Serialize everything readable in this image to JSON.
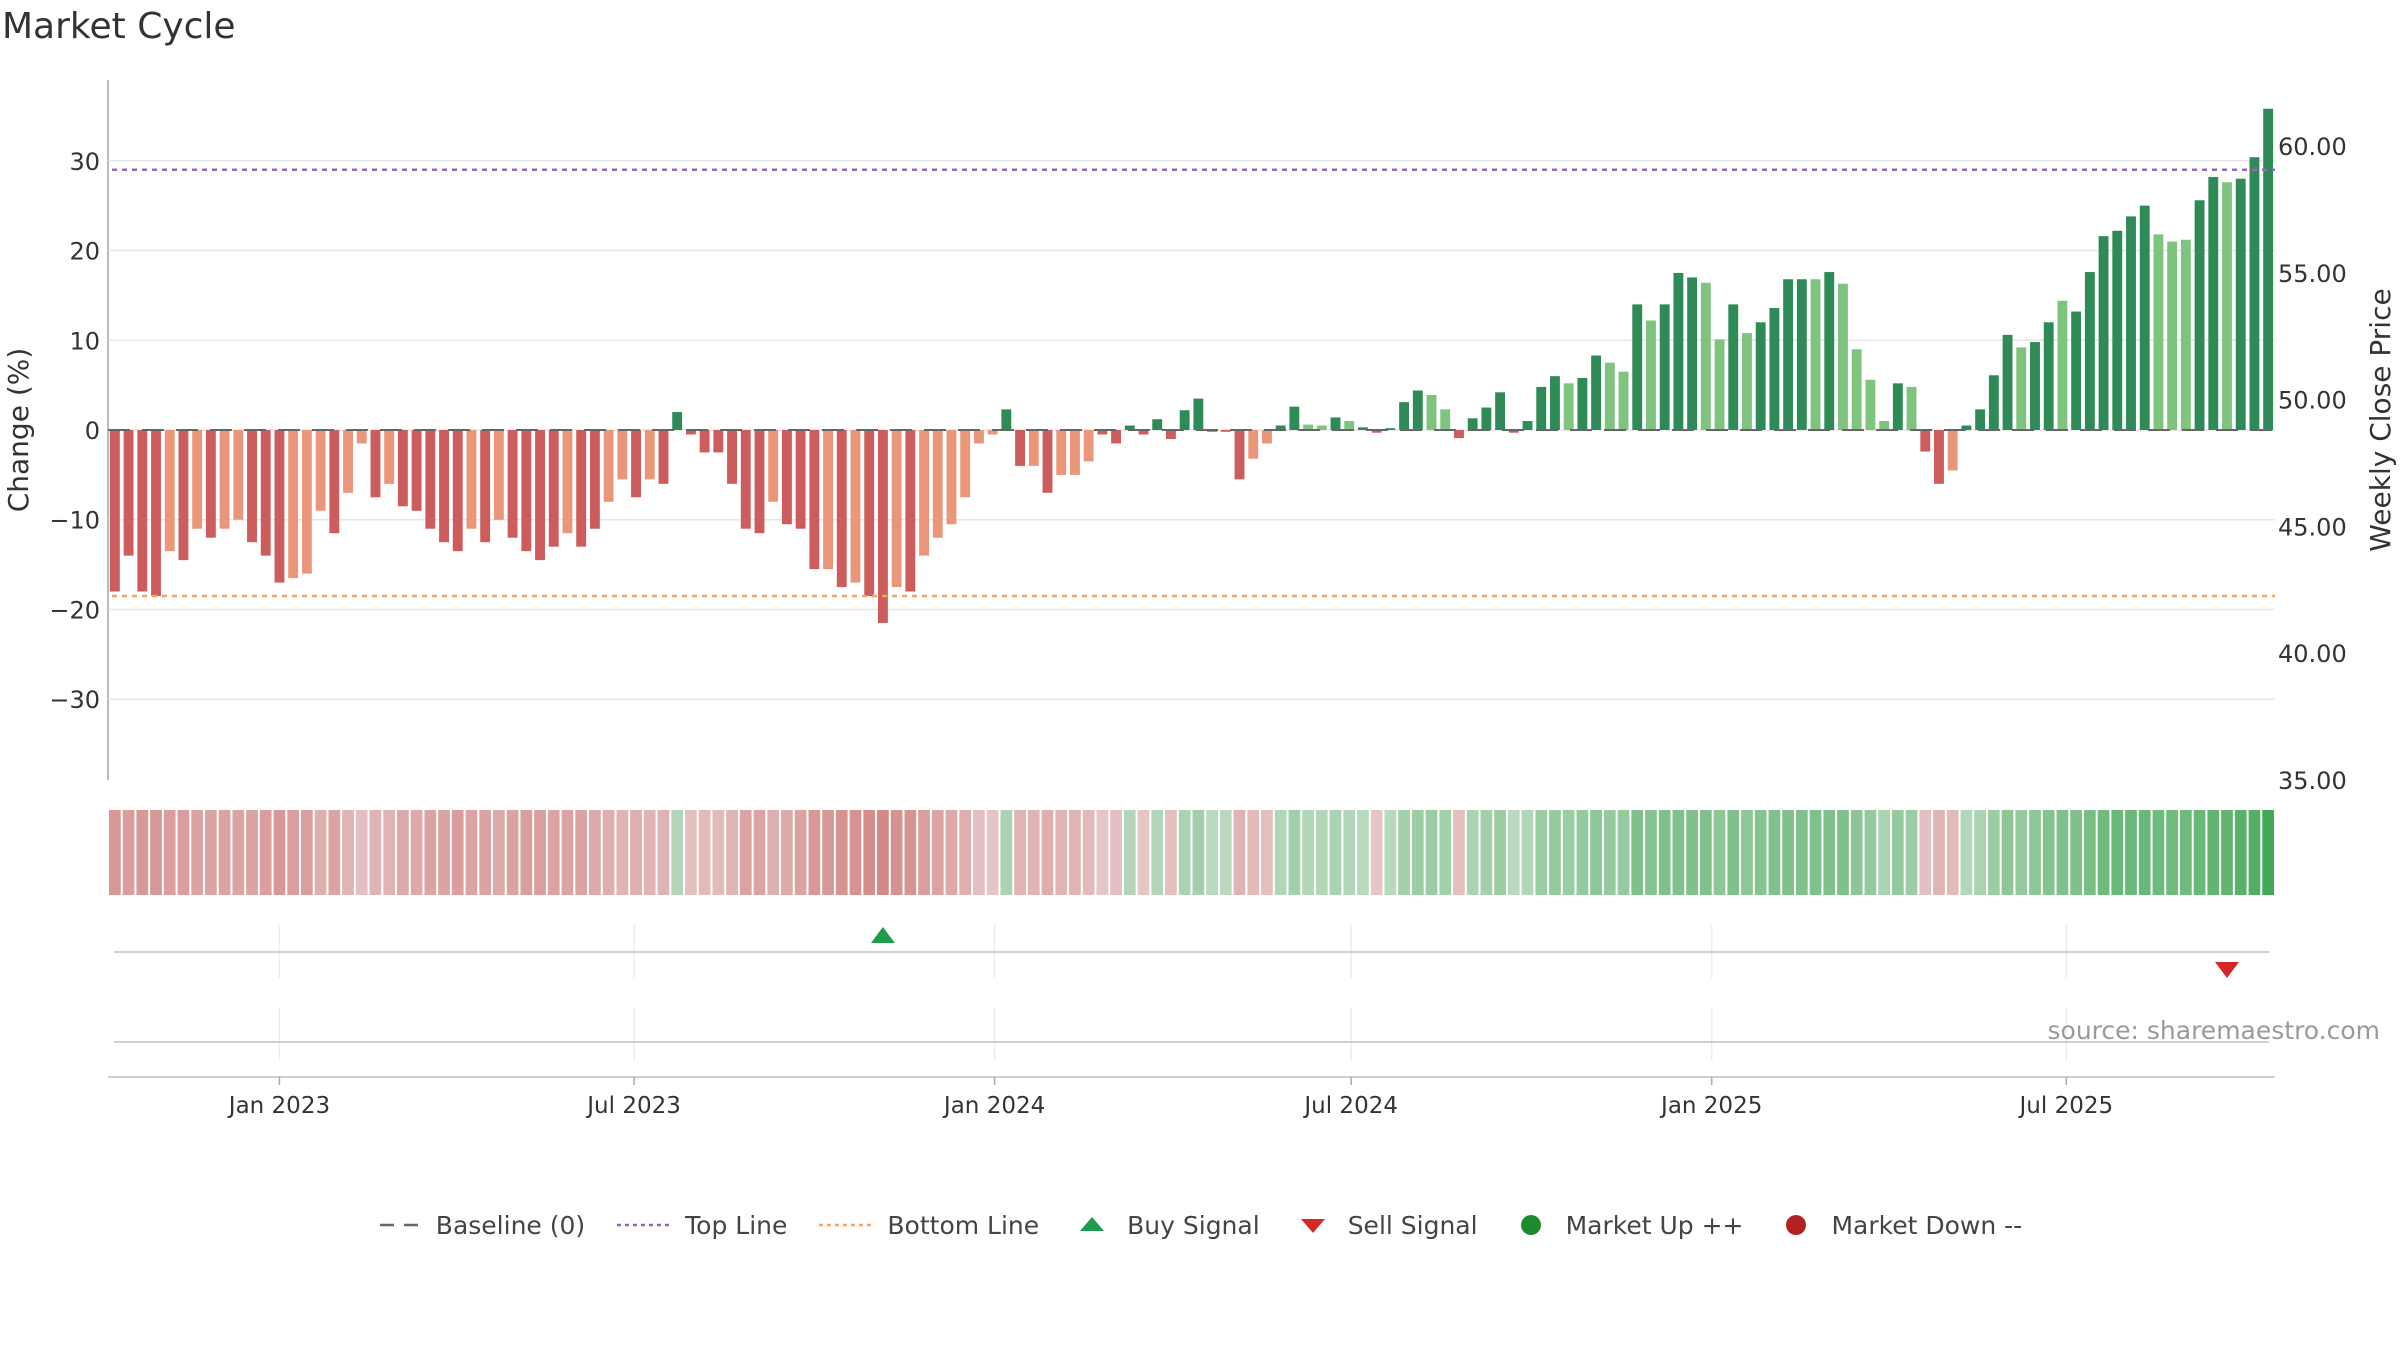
{
  "title": "Market Cycle",
  "source": "source: sharemaestro.com",
  "colors": {
    "up_dark": "#2e8b57",
    "up_light": "#7ec47f",
    "down_dark": "#cd5c5c",
    "down_light": "#e9967a",
    "top_line": "#9467bd",
    "bottom_line": "#f4a460",
    "buy": "#1f9b4e",
    "sell": "#d62728",
    "market_up": "#1e8a2e",
    "market_down": "#b22222"
  },
  "legend": [
    {
      "label": "Baseline (0)",
      "icon": "dash-line-icon",
      "color": "#666666"
    },
    {
      "label": "Top Line",
      "icon": "dotted-line-icon",
      "color": "#9467bd"
    },
    {
      "label": "Bottom Line",
      "icon": "dotted-line-icon",
      "color": "#f4a460"
    },
    {
      "label": "Buy Signal",
      "icon": "triangle-up-icon",
      "color": "#1f9b4e"
    },
    {
      "label": "Sell Signal",
      "icon": "triangle-down-icon",
      "color": "#d62728"
    },
    {
      "label": "Market Up ++",
      "icon": "circle-icon",
      "color": "#1e8a2e"
    },
    {
      "label": "Market Down --",
      "icon": "circle-icon",
      "color": "#b22222"
    }
  ],
  "chart_data": {
    "type": "bar",
    "ylabel": "Change (%)",
    "y2label": "Weekly Close Price",
    "ylim": [
      -39,
      39
    ],
    "yticks": [
      30,
      20,
      10,
      0,
      -10,
      -20,
      -30
    ],
    "ytick_labels": [
      "30",
      "20",
      "10",
      "0",
      "−10",
      "−20",
      "−30"
    ],
    "y2lim": [
      35,
      62.6
    ],
    "y2ticks": [
      60,
      55,
      50,
      45,
      40,
      35
    ],
    "y2tick_labels": [
      "60.00",
      "55.00",
      "50.00",
      "45.00",
      "40.00",
      "35.00"
    ],
    "top_line": 29,
    "bottom_line": -18.5,
    "xticks": [
      "Jan 2023",
      "Jul 2023",
      "Jan 2024",
      "Jul 2024",
      "Jan 2025",
      "Jul 2025"
    ],
    "start_date": "2022-10-09",
    "values": [
      -18,
      -14,
      -18,
      -18.5,
      -13.5,
      -14.5,
      -11,
      -12,
      -11,
      -10,
      -12.5,
      -14,
      -17,
      -16.5,
      -16,
      -9,
      -11.5,
      -7,
      -1.5,
      -7.5,
      -6,
      -8.5,
      -9,
      -11,
      -12.5,
      -13.5,
      -11,
      -12.5,
      -10,
      -12,
      -13.5,
      -14.5,
      -13,
      -11.5,
      -13,
      -11,
      -8,
      -5.5,
      -7.5,
      -5.5,
      -6,
      2,
      -0.5,
      -2.5,
      -2.5,
      -6,
      -11,
      -11.5,
      -8,
      -10.5,
      -11,
      -15.5,
      -15.5,
      -17.5,
      -17,
      -18.5,
      -21.5,
      -17.5,
      -18,
      -14,
      -12,
      -10.5,
      -7.5,
      -1.5,
      -0.5,
      2.3,
      -4,
      -4,
      -7,
      -5,
      -5,
      -3.5,
      -0.5,
      -1.5,
      0.5,
      -0.5,
      1.2,
      -1,
      2.2,
      3.5,
      -0.2,
      -0.2,
      -5.5,
      -3.2,
      -1.5,
      0.5,
      2.6,
      0.6,
      0.5,
      1.4,
      1,
      0.3,
      -0.3,
      0.2,
      3.1,
      4.4,
      3.9,
      2.3,
      -0.9,
      1.3,
      2.5,
      4.2,
      -0.3,
      1,
      4.8,
      6,
      5.2,
      5.8,
      8.3,
      7.5,
      6.5,
      14,
      12.2,
      14,
      17.5,
      17,
      16.4,
      10.1,
      14,
      10.8,
      12,
      13.6,
      16.8,
      16.8,
      16.8,
      17.6,
      16.3,
      9,
      5.6,
      1,
      5.2,
      4.8,
      -2.4,
      -6,
      -4.5,
      0.5,
      2.3,
      6.1,
      10.6,
      9.2,
      9.8,
      12,
      14.4,
      13.2,
      17.6,
      21.6,
      22.2,
      23.8,
      25,
      21.8,
      21,
      21.2,
      25.6,
      28.2,
      27.6,
      28,
      30.4,
      35.8
    ],
    "shades": [
      "d",
      "d",
      "d",
      "d",
      "l",
      "d",
      "l",
      "d",
      "l",
      "l",
      "d",
      "d",
      "d",
      "l",
      "l",
      "l",
      "d",
      "l",
      "l",
      "d",
      "l",
      "d",
      "d",
      "d",
      "d",
      "d",
      "l",
      "d",
      "l",
      "d",
      "d",
      "d",
      "d",
      "l",
      "d",
      "d",
      "l",
      "l",
      "d",
      "l",
      "d",
      "d",
      "d",
      "d",
      "d",
      "d",
      "d",
      "d",
      "l",
      "d",
      "d",
      "d",
      "l",
      "d",
      "l",
      "d",
      "d",
      "l",
      "d",
      "l",
      "l",
      "l",
      "l",
      "l",
      "l",
      "d",
      "d",
      "l",
      "d",
      "l",
      "l",
      "l",
      "d",
      "d",
      "d",
      "d",
      "d",
      "d",
      "d",
      "d",
      "d",
      "d",
      "d",
      "l",
      "l",
      "d",
      "d",
      "l",
      "l",
      "d",
      "l",
      "d",
      "d",
      "d",
      "d",
      "d",
      "l",
      "l",
      "d",
      "d",
      "d",
      "d",
      "d",
      "d",
      "d",
      "d",
      "l",
      "d",
      "d",
      "l",
      "l",
      "d",
      "l",
      "d",
      "d",
      "d",
      "l",
      "l",
      "d",
      "l",
      "d",
      "d",
      "d",
      "d",
      "l",
      "d",
      "l",
      "l",
      "l",
      "l",
      "d",
      "l",
      "d",
      "d",
      "l",
      "d",
      "d",
      "d",
      "d",
      "l",
      "d",
      "d",
      "l",
      "d",
      "d",
      "d",
      "d",
      "d",
      "d",
      "l",
      "l",
      "l",
      "d",
      "d",
      "l",
      "d",
      "d",
      "d"
    ],
    "heat_strip": [
      -0.45,
      -0.4,
      -0.45,
      -0.45,
      -0.4,
      -0.4,
      -0.35,
      -0.35,
      -0.35,
      -0.35,
      -0.35,
      -0.4,
      -0.45,
      -0.4,
      -0.4,
      -0.25,
      -0.35,
      -0.2,
      -0.1,
      -0.2,
      -0.2,
      -0.3,
      -0.3,
      -0.35,
      -0.35,
      -0.4,
      -0.35,
      -0.35,
      -0.3,
      -0.35,
      -0.4,
      -0.4,
      -0.35,
      -0.35,
      -0.35,
      -0.3,
      -0.25,
      -0.2,
      -0.25,
      -0.2,
      -0.2,
      0.1,
      -0.1,
      -0.15,
      -0.15,
      -0.2,
      -0.35,
      -0.35,
      -0.25,
      -0.3,
      -0.35,
      -0.45,
      -0.45,
      -0.5,
      -0.5,
      -0.55,
      -0.6,
      -0.5,
      -0.5,
      -0.4,
      -0.35,
      -0.3,
      -0.25,
      -0.1,
      -0.05,
      0.15,
      -0.2,
      -0.2,
      -0.25,
      -0.2,
      -0.2,
      -0.15,
      -0.05,
      -0.1,
      0.1,
      -0.05,
      0.1,
      -0.1,
      0.15,
      0.2,
      0.05,
      0.05,
      -0.2,
      -0.15,
      -0.1,
      0.1,
      0.2,
      0.1,
      0.1,
      0.15,
      0.1,
      0.05,
      -0.05,
      0.05,
      0.2,
      0.25,
      0.25,
      0.2,
      -0.1,
      0.15,
      0.2,
      0.25,
      0.05,
      0.1,
      0.25,
      0.3,
      0.25,
      0.3,
      0.35,
      0.3,
      0.3,
      0.45,
      0.4,
      0.45,
      0.45,
      0.45,
      0.45,
      0.35,
      0.45,
      0.35,
      0.4,
      0.45,
      0.45,
      0.45,
      0.45,
      0.45,
      0.45,
      0.35,
      0.3,
      0.15,
      0.3,
      0.25,
      -0.1,
      -0.2,
      -0.15,
      0.1,
      0.15,
      0.25,
      0.35,
      0.3,
      0.35,
      0.4,
      0.45,
      0.45,
      0.5,
      0.55,
      0.6,
      0.6,
      0.6,
      0.55,
      0.55,
      0.55,
      0.6,
      0.65,
      0.65,
      0.7,
      0.75,
      0.85
    ],
    "buy_signals": [
      56
    ],
    "sell_signals": [
      154
    ]
  }
}
